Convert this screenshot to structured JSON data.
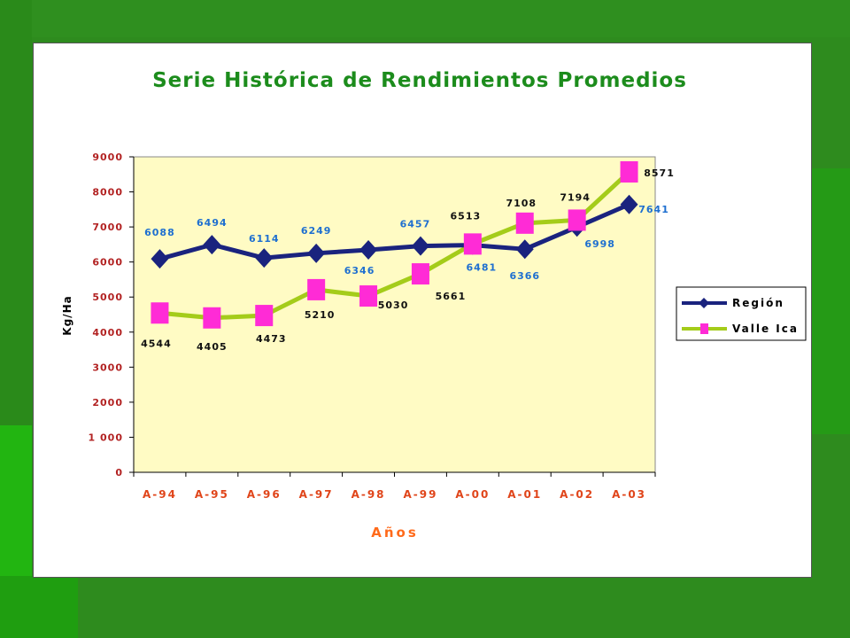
{
  "chart_data": {
    "type": "line",
    "title": "Serie Histórica de Rendimientos Promedios",
    "xlabel": "Años",
    "ylabel": "Kg/Ha",
    "categories": [
      "A-94",
      "A-95",
      "A-96",
      "A-97",
      "A-98",
      "A-99",
      "A-00",
      "A-01",
      "A-02",
      "A-03"
    ],
    "ylim": [
      0,
      9000
    ],
    "yticks": [
      "0",
      "1 000",
      "2000",
      "3000",
      "4000",
      "5000",
      "6000",
      "7000",
      "8000",
      "9000"
    ],
    "grid": false,
    "legend_position": "right",
    "series": [
      {
        "name": "Región",
        "color": "#1a237e",
        "label_color": "#1e6fd0",
        "marker": "diamond",
        "values": [
          6088,
          6494,
          6114,
          6249,
          6346,
          6457,
          6481,
          6366,
          6998,
          7641
        ],
        "value_labels": [
          "6088",
          "6494",
          "6114",
          "6249",
          "6346",
          "6457",
          "6481",
          "6366",
          "6998",
          "7641"
        ]
      },
      {
        "name": "Valle Ica",
        "color": "#a4cc1a",
        "label_color": "#111111",
        "marker": "square",
        "marker_color": "#ff2bd6",
        "values": [
          4544,
          4405,
          4473,
          5210,
          5030,
          5661,
          6513,
          7108,
          7194,
          8571
        ],
        "value_labels": [
          "4544",
          "4405",
          "4473",
          "5210",
          "5030",
          "5661",
          "6513",
          "7108",
          "7194",
          "8571"
        ]
      }
    ],
    "plot_background": "#fffbc4"
  }
}
